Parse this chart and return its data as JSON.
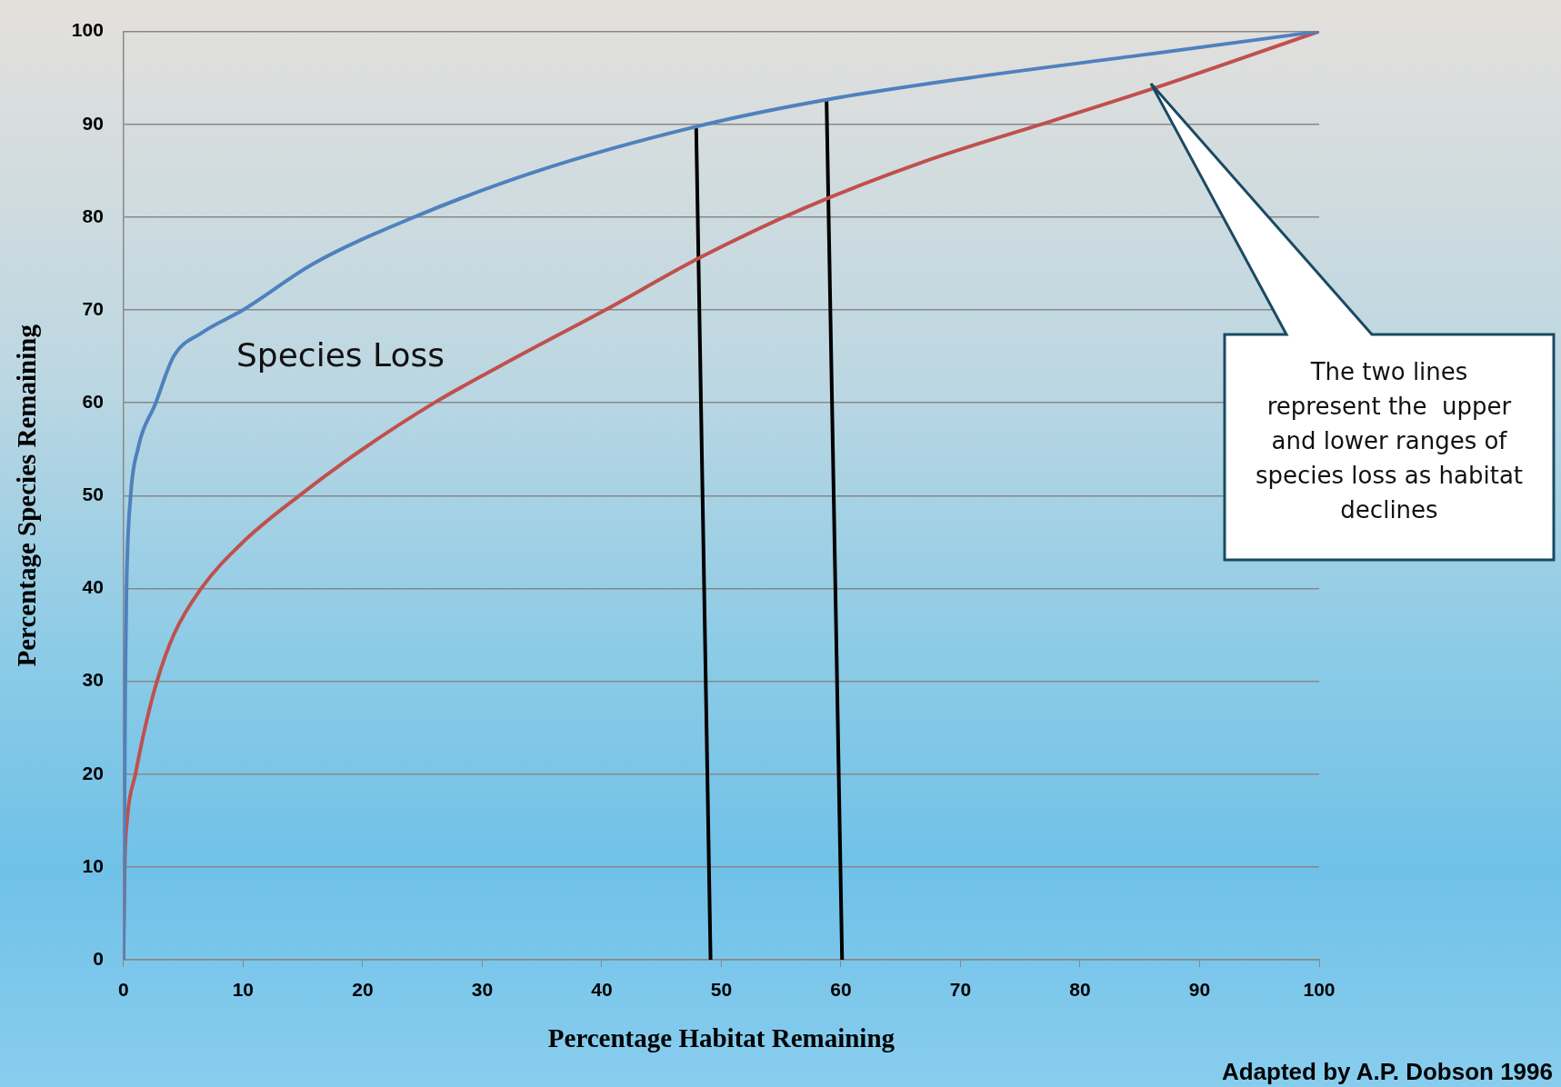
{
  "chart_data": {
    "type": "line",
    "xlabel": "Percentage Habitat Remaining",
    "ylabel": "Percentage Species Remaining",
    "xlim": [
      0,
      100
    ],
    "xticks": [
      0,
      10,
      20,
      30,
      40,
      50,
      60,
      70,
      80,
      90,
      100
    ],
    "ylim": [
      0,
      100
    ],
    "yticks": [
      0,
      10,
      20,
      30,
      40,
      50,
      60,
      70,
      80,
      90,
      100
    ],
    "grid": "y",
    "legend": false,
    "marker": "none",
    "line_style": "solid",
    "series": [
      {
        "color": "#4f81bd",
        "x": [
          0,
          0.1,
          0.15,
          0.25,
          0.6,
          1.2,
          2.7,
          4.2,
          6.5,
          10,
          15.9,
          24.3,
          34.7,
          48.7,
          59,
          70.7,
          85.4,
          100
        ],
        "values": [
          0,
          20,
          30,
          40,
          50,
          55,
          60,
          65,
          67.5,
          70,
          75,
          80,
          85,
          90,
          92.7,
          95,
          97.5,
          100
        ]
      },
      {
        "color": "#c0504d",
        "x": [
          0,
          0.1,
          0.3,
          1,
          1.8,
          2.8,
          4.2,
          6.5,
          10,
          14.7,
          20,
          26,
          33,
          40.3,
          48,
          57,
          67,
          78,
          86,
          100
        ],
        "values": [
          0,
          10,
          15,
          20,
          25,
          30,
          35,
          40,
          45,
          50,
          55,
          60,
          65,
          70,
          75.5,
          81,
          86,
          90.5,
          93.8,
          100
        ]
      },
      {
        "color": "#000000",
        "x": [
          47.9,
          49.1
        ],
        "values": [
          89.5,
          0
        ]
      },
      {
        "color": "#000000",
        "x": [
          58.8,
          60.1
        ],
        "values": [
          92.6,
          0
        ]
      }
    ],
    "annotations": [
      "Species Loss",
      "The two lines represent the  upper and lower ranges of species loss as habitat declines",
      "Adapted by A.P. Dobson 1996"
    ]
  }
}
